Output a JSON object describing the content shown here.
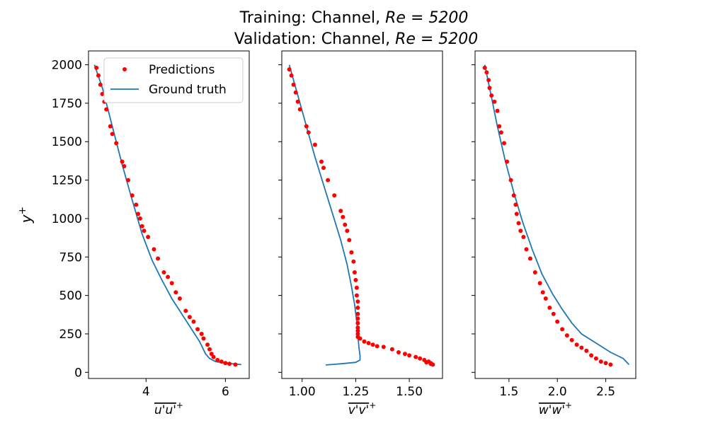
{
  "title_line1": "Training: Channel, ",
  "title_line1_math": "Re = 5200",
  "title_line2": "Validation: Channel, ",
  "title_line2_math": "Re = 5200",
  "colors": {
    "predictions": "#ff0000",
    "ground_truth": "#1f77b4"
  },
  "chart_data": [
    {
      "type": "scatter",
      "xlabel": "u'u'+",
      "ylabel": "y+",
      "xlim": [
        2.55,
        6.6
      ],
      "ylim": [
        -40,
        2090
      ],
      "xticks": [
        4,
        6
      ],
      "xtick_labels": [
        "4",
        "6"
      ],
      "yticks": [
        0,
        250,
        500,
        750,
        1000,
        1250,
        1500,
        1750,
        2000
      ],
      "ytick_labels": [
        "0",
        "250",
        "500",
        "750",
        "1000",
        "1250",
        "1500",
        "1750",
        "2000"
      ],
      "legend": {
        "position": "top-right",
        "entries": [
          "Predictions",
          "Ground truth"
        ]
      },
      "series": [
        {
          "name": "Predictions",
          "kind": "scatter",
          "x": [
            2.75,
            2.8,
            2.85,
            2.9,
            2.95,
            3.0,
            3.1,
            3.15,
            3.25,
            3.4,
            3.45,
            3.55,
            3.65,
            3.75,
            3.8,
            3.85,
            3.9,
            3.95,
            4.05,
            4.2,
            4.3,
            4.45,
            4.55,
            4.65,
            4.75,
            4.85,
            5.0,
            5.1,
            5.2,
            5.3,
            5.4,
            5.45,
            5.55,
            5.6,
            5.65,
            5.7,
            5.8,
            5.9,
            6.0,
            6.1,
            6.25
          ],
          "y": [
            1980,
            1930,
            1870,
            1810,
            1760,
            1710,
            1600,
            1550,
            1490,
            1370,
            1340,
            1250,
            1150,
            1090,
            1030,
            1000,
            950,
            920,
            880,
            800,
            740,
            650,
            620,
            580,
            520,
            480,
            400,
            360,
            330,
            280,
            250,
            220,
            180,
            150,
            120,
            100,
            80,
            70,
            60,
            55,
            50
          ]
        },
        {
          "name": "Ground truth",
          "kind": "line",
          "x": [
            2.7,
            2.9,
            3.15,
            3.4,
            3.65,
            3.9,
            4.15,
            4.4,
            4.65,
            4.9,
            5.15,
            5.35,
            5.5,
            5.6,
            5.75,
            6.0,
            6.2,
            6.4
          ],
          "y": [
            2000,
            1850,
            1600,
            1350,
            1120,
            900,
            730,
            600,
            480,
            380,
            280,
            200,
            120,
            90,
            70,
            60,
            55,
            50
          ]
        }
      ]
    },
    {
      "type": "scatter",
      "xlabel": "v'v'+",
      "ylabel": "",
      "xlim": [
        0.905,
        1.655
      ],
      "ylim": [
        -40,
        2090
      ],
      "xticks": [
        1.0,
        1.25,
        1.5
      ],
      "xtick_labels": [
        "1.00",
        "1.25",
        "1.50"
      ],
      "yticks": [
        0,
        250,
        500,
        750,
        1000,
        1250,
        1500,
        1750,
        2000
      ],
      "series": [
        {
          "name": "Predictions",
          "kind": "scatter",
          "x": [
            0.94,
            0.95,
            0.96,
            0.97,
            0.98,
            0.99,
            1.02,
            1.03,
            1.06,
            1.09,
            1.1,
            1.12,
            1.15,
            1.18,
            1.19,
            1.2,
            1.21,
            1.22,
            1.23,
            1.24,
            1.245,
            1.25,
            1.255,
            1.255,
            1.26,
            1.26,
            1.26,
            1.26,
            1.26,
            1.26,
            1.26,
            1.26,
            1.26,
            1.27,
            1.29,
            1.31,
            1.33,
            1.35,
            1.38,
            1.42,
            1.45,
            1.48,
            1.5,
            1.53,
            1.55,
            1.57,
            1.59,
            1.6,
            1.61,
            1.6,
            1.58
          ],
          "y": [
            1970,
            1930,
            1870,
            1820,
            1760,
            1710,
            1600,
            1560,
            1480,
            1370,
            1330,
            1250,
            1150,
            1050,
            1010,
            960,
            920,
            860,
            780,
            720,
            650,
            600,
            550,
            500,
            460,
            420,
            380,
            350,
            320,
            290,
            270,
            250,
            230,
            220,
            200,
            190,
            180,
            170,
            165,
            150,
            130,
            120,
            110,
            100,
            90,
            80,
            70,
            60,
            50,
            55,
            65
          ]
        },
        {
          "name": "Ground truth",
          "kind": "line",
          "x": [
            0.94,
            0.98,
            1.02,
            1.06,
            1.1,
            1.14,
            1.18,
            1.21,
            1.23,
            1.245,
            1.255,
            1.26,
            1.265,
            1.27,
            1.27,
            1.25,
            1.2,
            1.15,
            1.11
          ],
          "y": [
            2000,
            1800,
            1600,
            1400,
            1220,
            1040,
            860,
            700,
            560,
            440,
            330,
            250,
            160,
            110,
            80,
            65,
            58,
            52,
            48
          ]
        }
      ]
    },
    {
      "type": "scatter",
      "xlabel": "w'w'+",
      "ylabel": "",
      "xlim": [
        1.15,
        2.81
      ],
      "ylim": [
        -40,
        2090
      ],
      "xticks": [
        1.5,
        2.0,
        2.5
      ],
      "xtick_labels": [
        "1.5",
        "2.0",
        "2.5"
      ],
      "yticks": [
        0,
        250,
        500,
        750,
        1000,
        1250,
        1500,
        1750,
        2000
      ],
      "series": [
        {
          "name": "Predictions",
          "kind": "scatter",
          "x": [
            1.25,
            1.27,
            1.29,
            1.3,
            1.32,
            1.35,
            1.38,
            1.4,
            1.42,
            1.45,
            1.48,
            1.52,
            1.55,
            1.57,
            1.58,
            1.6,
            1.62,
            1.65,
            1.68,
            1.72,
            1.77,
            1.82,
            1.85,
            1.88,
            1.92,
            1.96,
            2.0,
            2.05,
            2.1,
            2.15,
            2.2,
            2.25,
            2.3,
            2.35,
            2.4,
            2.45,
            2.5,
            2.55
          ],
          "y": [
            1980,
            1950,
            1900,
            1850,
            1800,
            1760,
            1700,
            1600,
            1560,
            1490,
            1370,
            1250,
            1150,
            1090,
            1030,
            970,
            920,
            880,
            800,
            740,
            650,
            580,
            520,
            480,
            420,
            380,
            330,
            280,
            240,
            210,
            180,
            160,
            140,
            110,
            90,
            70,
            60,
            50
          ]
        },
        {
          "name": "Ground truth",
          "kind": "line",
          "x": [
            1.25,
            1.3,
            1.38,
            1.46,
            1.55,
            1.64,
            1.74,
            1.84,
            1.95,
            2.05,
            2.15,
            2.25,
            2.4,
            2.55,
            2.68,
            2.74
          ],
          "y": [
            2000,
            1850,
            1600,
            1380,
            1170,
            980,
            800,
            640,
            510,
            410,
            320,
            250,
            190,
            130,
            90,
            50
          ]
        }
      ]
    }
  ]
}
